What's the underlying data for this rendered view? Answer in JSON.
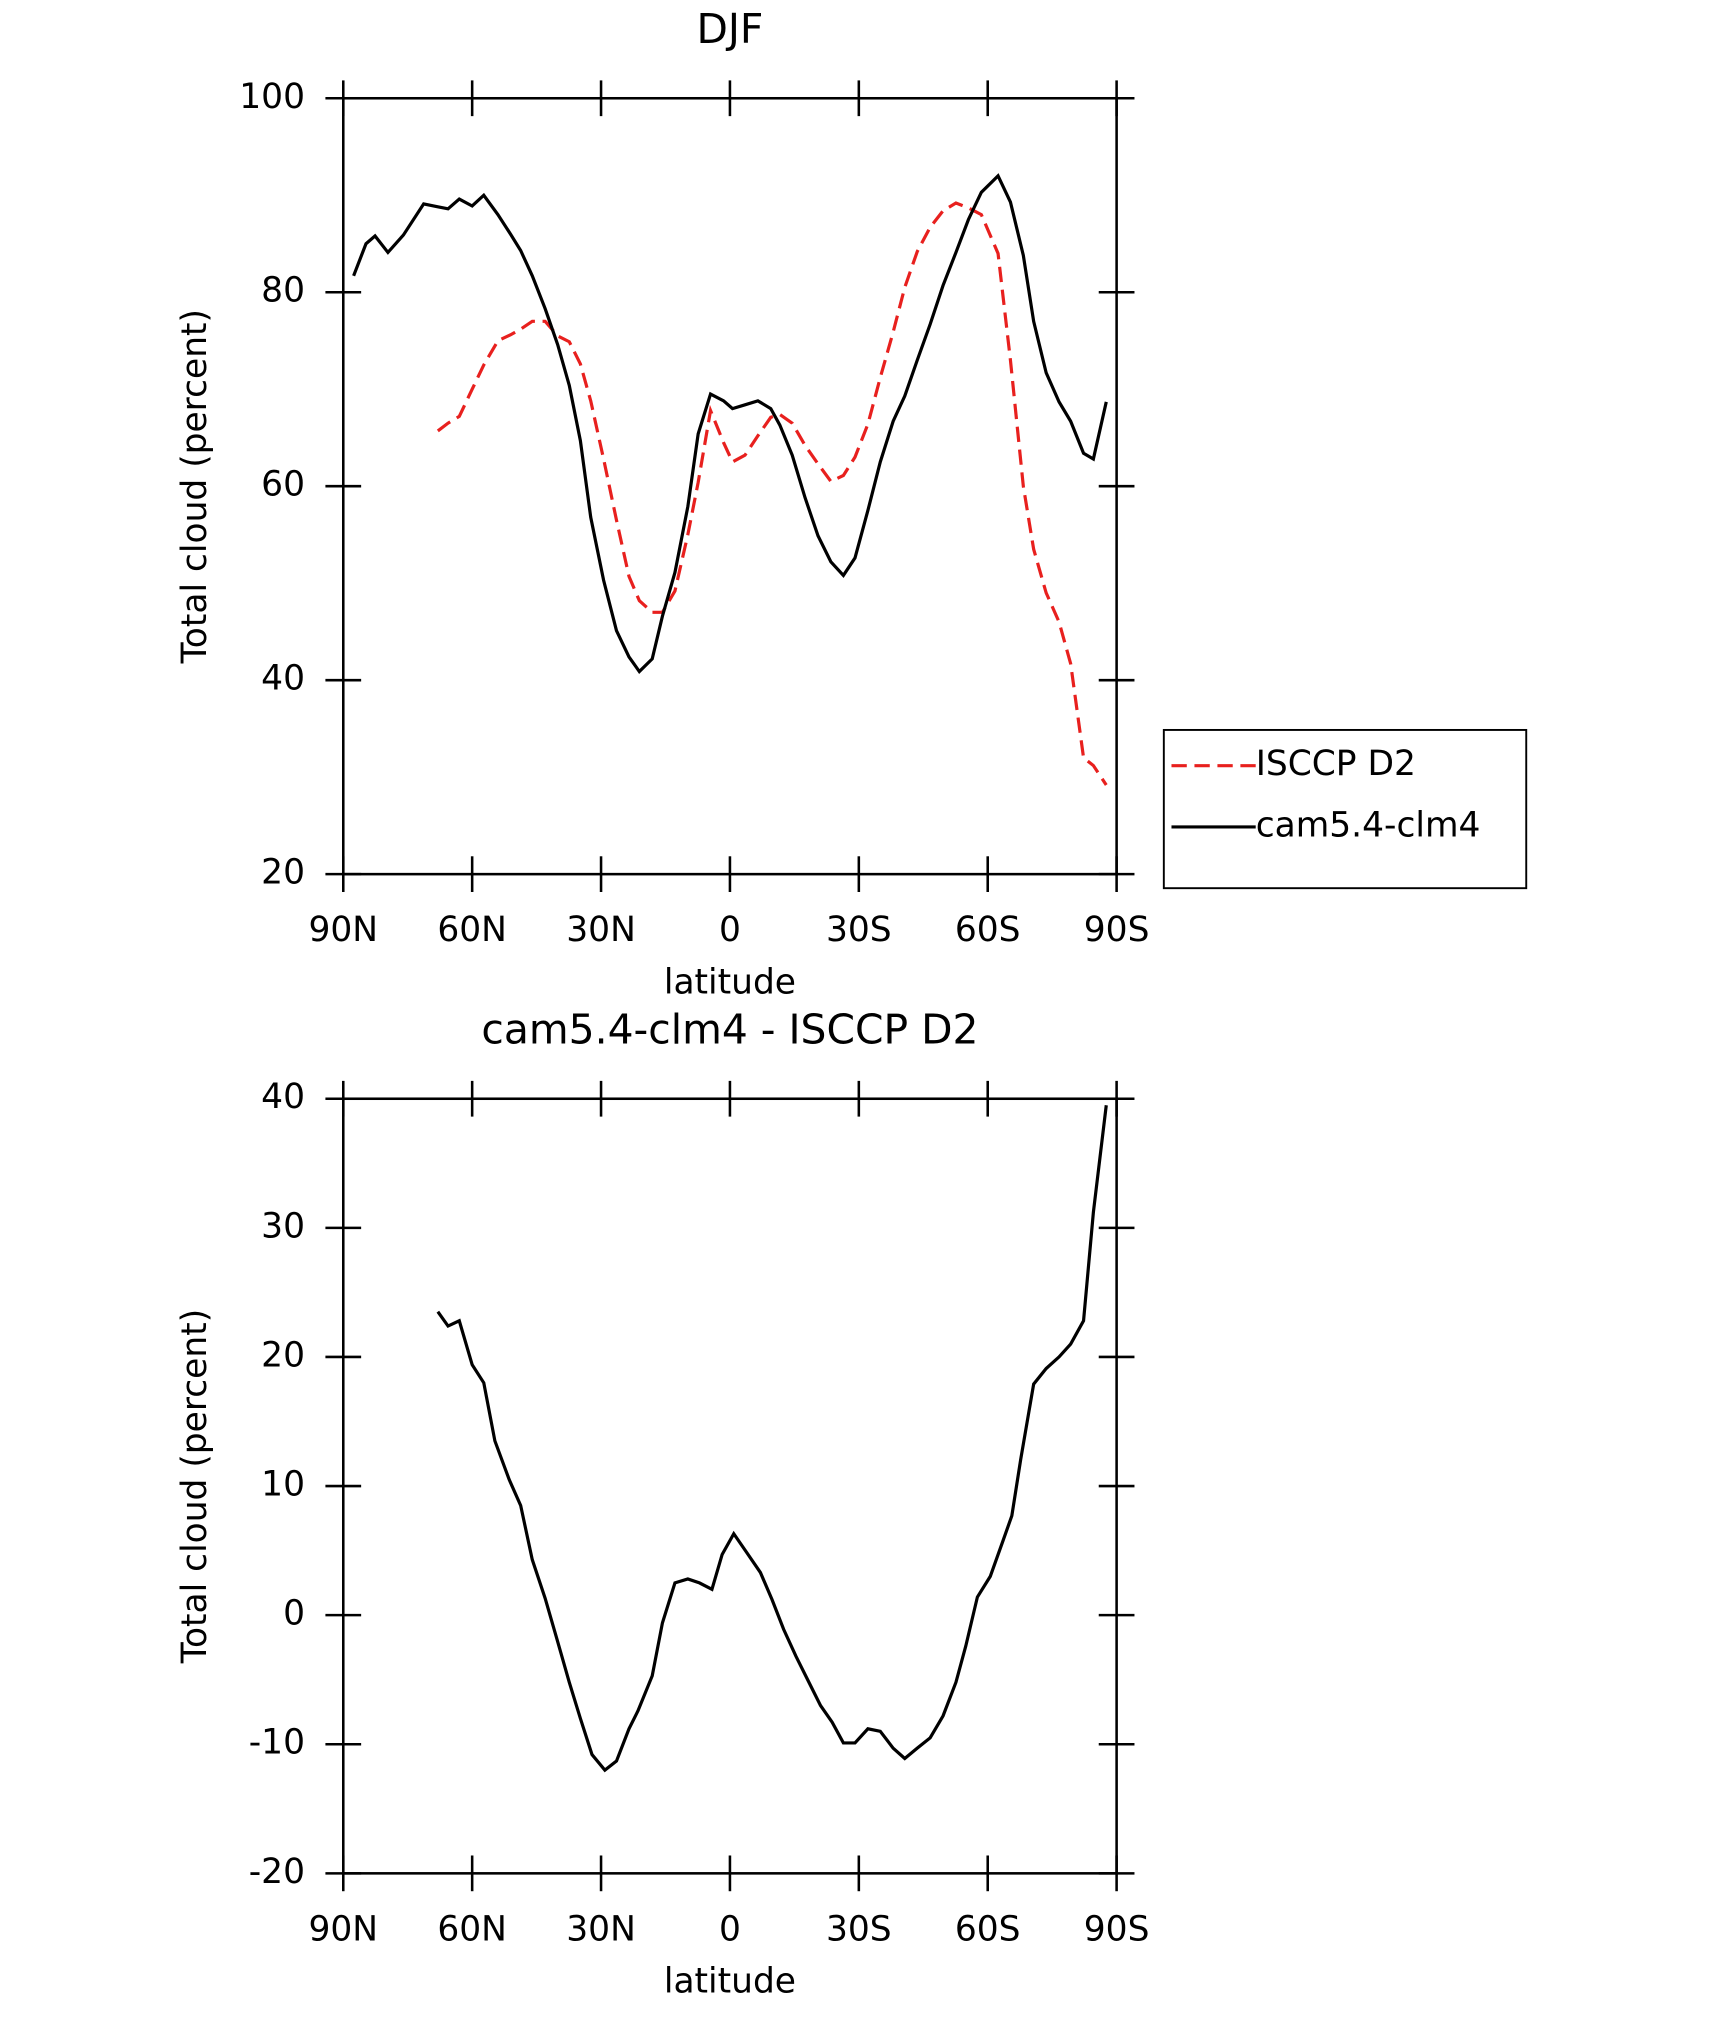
{
  "chart_data": [
    {
      "type": "line",
      "title": "DJF",
      "xlabel": "latitude",
      "ylabel": "Total cloud (percent)",
      "x": [
        87.6,
        84.7,
        82.6,
        79.6,
        76,
        71.3,
        68,
        65.6,
        63,
        60,
        57.3,
        54,
        51.1,
        48.7,
        46,
        43,
        40.1,
        37.4,
        34.8,
        32.4,
        29.4,
        26.4,
        23.5,
        21.1,
        18.1,
        15.7,
        12.8,
        9.8,
        7.4,
        4.5,
        1.5,
        -0.6,
        -3.5,
        -6.5,
        -9.5,
        -11.6,
        -14.5,
        -17.5,
        -20.5,
        -23.5,
        -26.4,
        -29.1,
        -32.1,
        -35,
        -38,
        -40.7,
        -43.6,
        -46.6,
        -49.6,
        -52.6,
        -55.5,
        -58.5,
        -62.4,
        -65.3,
        -68.3,
        -70.7,
        -73.6,
        -76.6,
        -79.3,
        -82.3,
        -84.6,
        -87.6
      ],
      "series": [
        {
          "name": "ISCCP D2",
          "color": "#e8201e",
          "style": "dashed",
          "values": [
            null,
            null,
            null,
            null,
            null,
            null,
            65.7,
            66.5,
            67.2,
            70,
            72.5,
            75,
            75.6,
            76.2,
            77,
            77,
            75.5,
            74.9,
            72.6,
            68.8,
            62.8,
            56.5,
            50.7,
            48.2,
            47,
            47,
            49.2,
            55,
            60.4,
            67.8,
            64.5,
            62.5,
            63.2,
            65.2,
            67.1,
            67.4,
            66.5,
            64.2,
            62.3,
            60.5,
            61.1,
            63,
            66.4,
            71.2,
            75.9,
            80.5,
            84.2,
            86.7,
            88.4,
            89.2,
            88.7,
            88,
            84,
            73,
            60,
            53.5,
            49,
            46,
            41.7,
            32,
            31.2,
            29.2
          ]
        },
        {
          "name": "cam5.4-clm4",
          "color": "#000000",
          "style": "solid",
          "values": [
            81.7,
            85,
            85.8,
            84.1,
            85.9,
            89.1,
            88.8,
            88.6,
            89.6,
            88.9,
            90,
            88,
            86,
            84.3,
            81.7,
            78.3,
            74.6,
            70.4,
            64.7,
            56.8,
            50.3,
            45.1,
            42.4,
            40.9,
            42.2,
            46.6,
            51.1,
            57.9,
            65.4,
            69.5,
            68.8,
            68,
            68.4,
            68.8,
            68,
            66.3,
            63.2,
            58.8,
            54.9,
            52.2,
            50.8,
            52.6,
            57.5,
            62.5,
            66.7,
            69.3,
            73,
            76.7,
            80.7,
            84.1,
            87.5,
            90.3,
            92,
            89.3,
            83.8,
            77,
            71.7,
            68.7,
            66.7,
            63.4,
            62.8,
            68.7
          ]
        }
      ],
      "xlim": [
        90,
        -90
      ],
      "xticks": [
        {
          "value": 90,
          "label": "90N"
        },
        {
          "value": 60,
          "label": "60N"
        },
        {
          "value": 30,
          "label": "30N"
        },
        0,
        {
          "value": -30,
          "label": "30S"
        },
        {
          "value": -60,
          "label": "60S"
        },
        {
          "value": -90,
          "label": "90S"
        }
      ],
      "ylim": [
        20,
        100
      ],
      "yticks": [
        20,
        40,
        60,
        80,
        100
      ],
      "legend": "outside-right"
    },
    {
      "type": "line",
      "title": "cam5.4-clm4 - ISCCP D2",
      "xlabel": "latitude",
      "ylabel": "Total cloud (percent)",
      "x": [
        68,
        65.6,
        63,
        60,
        57.3,
        54.7,
        51.4,
        48.7,
        46,
        43,
        40.4,
        37.4,
        34.8,
        32.1,
        29.1,
        26.4,
        23.5,
        21.4,
        18.1,
        15.7,
        12.8,
        9.8,
        7.1,
        4.2,
        1.8,
        -0.9,
        -3.8,
        -7.1,
        -9.8,
        -12.5,
        -15.4,
        -18.1,
        -21.1,
        -23.8,
        -26.4,
        -29.1,
        -32.1,
        -35,
        -38,
        -40.7,
        -43.6,
        -46.6,
        -49.6,
        -52.6,
        -54.9,
        -57.6,
        -60.6,
        -63.6,
        -65.6,
        -67.7,
        -70.7,
        -73.6,
        -76.6,
        -79.3,
        -82.3,
        -84.6,
        -87.6
      ],
      "series": [
        {
          "name": "cam5.4-clm4 - ISCCP D2",
          "color": "#000000",
          "style": "solid",
          "values": [
            23.5,
            22.4,
            22.8,
            19.4,
            18,
            13.5,
            10.5,
            8.5,
            4.3,
            1.3,
            -1.7,
            -5.2,
            -8,
            -10.8,
            -12,
            -11.3,
            -8.8,
            -7.4,
            -4.7,
            -0.6,
            2.5,
            2.8,
            2.5,
            2,
            4.7,
            6.3,
            4.9,
            3.3,
            1.2,
            -1.1,
            -3.2,
            -5,
            -7,
            -8.3,
            -9.9,
            -9.9,
            -8.8,
            -9,
            -10.3,
            -11.1,
            -10.3,
            -9.5,
            -7.8,
            -5.2,
            -2.4,
            1.4,
            3,
            5.8,
            7.7,
            12.1,
            17.9,
            19.1,
            20,
            21,
            22.8,
            31.2,
            39.5
          ]
        }
      ],
      "xlim": [
        90,
        -90
      ],
      "xticks": [
        {
          "value": 90,
          "label": "90N"
        },
        {
          "value": 60,
          "label": "60N"
        },
        {
          "value": 30,
          "label": "30N"
        },
        0,
        {
          "value": -30,
          "label": "30S"
        },
        {
          "value": -60,
          "label": "60S"
        },
        {
          "value": -90,
          "label": "90S"
        }
      ],
      "ylim": [
        -20,
        40
      ],
      "yticks": [
        -20,
        -10,
        0,
        10,
        20,
        30,
        40
      ]
    }
  ]
}
